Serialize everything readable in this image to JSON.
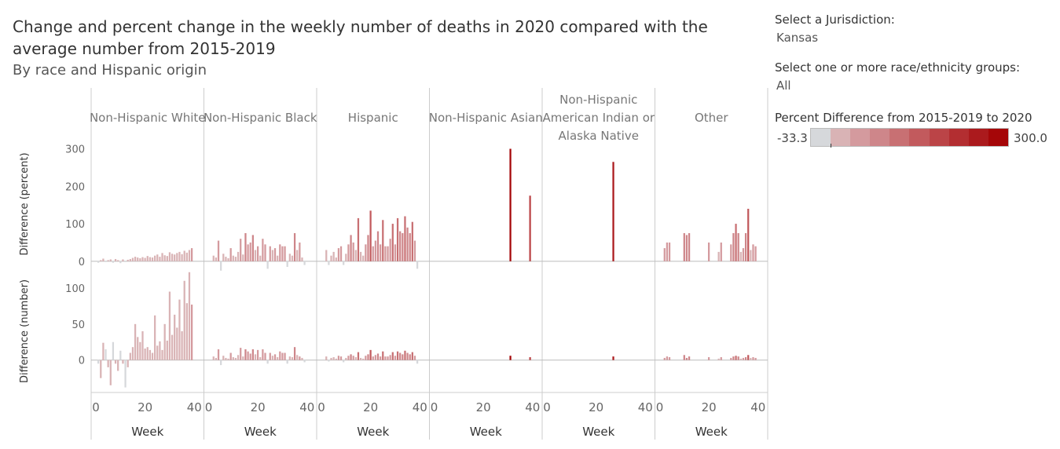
{
  "header": {
    "title": "Change and percent change in the weekly number of deaths in 2020 compared with the average number from 2015-2019",
    "subtitle": "By race and Hispanic origin"
  },
  "controls": {
    "jurisdiction_label": "Select a Jurisdiction:",
    "jurisdiction_value": "Kansas",
    "race_label": "Select one or more race/ethnicity groups:",
    "race_value": "All"
  },
  "legend": {
    "title": "Percent Difference from 2015-2019 to 2020",
    "min_label": "-33.3",
    "max_label": "300.0",
    "colors": [
      "#d6d8db",
      "#d9b3b5",
      "#d49a9e",
      "#ce868a",
      "#c87073",
      "#c25a5d",
      "#bb4447",
      "#b32e31",
      "#ab1a1d",
      "#a50608"
    ]
  },
  "chart_data": {
    "type": "bar",
    "x_label": "Week",
    "x_ticks": [
      "0",
      "20",
      "40"
    ],
    "x_range": [
      0,
      42
    ],
    "rows": [
      {
        "axis_label": "Difference (percent)",
        "ticks": [
          "0",
          "100",
          "200",
          "300"
        ],
        "range": [
          -15,
          320
        ]
      },
      {
        "axis_label": "Difference (number)",
        "ticks": [
          "0",
          "50",
          "100"
        ],
        "range": [
          -45,
          125
        ]
      }
    ],
    "panels": [
      {
        "name": "Non-Hispanic White",
        "weeks": [
          1,
          2,
          3,
          4,
          5,
          6,
          7,
          8,
          9,
          10,
          11,
          12,
          13,
          14,
          15,
          16,
          17,
          18,
          19,
          20,
          21,
          22,
          23,
          24,
          25,
          26,
          27,
          28,
          29,
          30,
          31,
          32,
          33,
          34,
          35,
          36,
          37,
          38,
          39
        ],
        "percent": [
          -4,
          3,
          7,
          -2,
          3,
          5,
          -4,
          6,
          3,
          -5,
          5,
          -2,
          4,
          6,
          9,
          12,
          10,
          8,
          11,
          9,
          14,
          11,
          10,
          15,
          18,
          12,
          22,
          16,
          14,
          24,
          20,
          18,
          22,
          25,
          19,
          28,
          23,
          30,
          35
        ],
        "number": [
          -5,
          -25,
          24,
          15,
          -10,
          -35,
          25,
          -5,
          -15,
          13,
          -5,
          -38,
          -10,
          10,
          18,
          50,
          32,
          25,
          40,
          16,
          18,
          14,
          10,
          62,
          20,
          26,
          14,
          50,
          27,
          95,
          35,
          63,
          45,
          84,
          40,
          110,
          79,
          122,
          77
        ]
      },
      {
        "name": "Non-Hispanic Black",
        "weeks": [
          2,
          3,
          4,
          5,
          6,
          7,
          8,
          9,
          10,
          11,
          12,
          13,
          14,
          15,
          16,
          17,
          18,
          19,
          20,
          21,
          22,
          23,
          24,
          25,
          26,
          27,
          28,
          29,
          30,
          31,
          32,
          33,
          34,
          35,
          36,
          37,
          38,
          39
        ],
        "percent": [
          15,
          10,
          55,
          -25,
          20,
          12,
          8,
          35,
          15,
          12,
          25,
          60,
          18,
          75,
          45,
          50,
          70,
          30,
          40,
          15,
          60,
          45,
          -20,
          40,
          30,
          35,
          15,
          45,
          40,
          40,
          -15,
          20,
          15,
          75,
          30,
          50,
          10,
          -10
        ],
        "number": [
          5,
          3,
          15,
          -7,
          6,
          3,
          2,
          10,
          4,
          3,
          7,
          17,
          5,
          15,
          12,
          9,
          15,
          8,
          14,
          4,
          15,
          10,
          -5,
          10,
          6,
          8,
          4,
          12,
          10,
          10,
          -5,
          5,
          4,
          18,
          7,
          5,
          3,
          -3
        ]
      },
      {
        "name": "Hispanic",
        "weeks": [
          2,
          3,
          4,
          5,
          6,
          7,
          8,
          9,
          10,
          11,
          12,
          13,
          14,
          15,
          16,
          17,
          18,
          19,
          20,
          21,
          22,
          23,
          24,
          25,
          26,
          27,
          28,
          29,
          30,
          31,
          32,
          33,
          34,
          35,
          36,
          37,
          38,
          39
        ],
        "percent": [
          30,
          -10,
          15,
          25,
          10,
          35,
          40,
          -10,
          20,
          45,
          70,
          50,
          30,
          115,
          25,
          15,
          45,
          70,
          135,
          40,
          55,
          80,
          45,
          110,
          40,
          40,
          60,
          100,
          45,
          115,
          80,
          75,
          120,
          90,
          75,
          105,
          55,
          -20
        ],
        "number": [
          5,
          -2,
          3,
          4,
          2,
          6,
          5,
          -3,
          3,
          6,
          8,
          6,
          4,
          11,
          3,
          2,
          6,
          8,
          14,
          5,
          7,
          9,
          5,
          12,
          5,
          5,
          7,
          11,
          6,
          12,
          10,
          8,
          13,
          10,
          8,
          11,
          6,
          -5
        ]
      },
      {
        "name": "Non-Hispanic Asian",
        "weeks": [
          31,
          39
        ],
        "percent": [
          300,
          175
        ],
        "number": [
          6,
          4
        ]
      },
      {
        "name": "Non-Hispanic American Indian or Alaska Native",
        "weeks": [
          27
        ],
        "percent": [
          265
        ],
        "number": [
          5
        ]
      },
      {
        "name": "Other",
        "weeks": [
          2,
          3,
          4,
          10,
          11,
          12,
          20,
          24,
          25,
          29,
          30,
          31,
          32,
          33,
          34,
          35,
          36,
          37,
          38,
          39
        ],
        "percent": [
          35,
          50,
          50,
          75,
          70,
          75,
          50,
          25,
          50,
          45,
          75,
          100,
          75,
          25,
          35,
          75,
          140,
          30,
          45,
          40
        ],
        "number": [
          3,
          5,
          4,
          7,
          3,
          5,
          4,
          2,
          4,
          3,
          5,
          6,
          5,
          2,
          3,
          4,
          7,
          3,
          4,
          3
        ]
      }
    ]
  }
}
